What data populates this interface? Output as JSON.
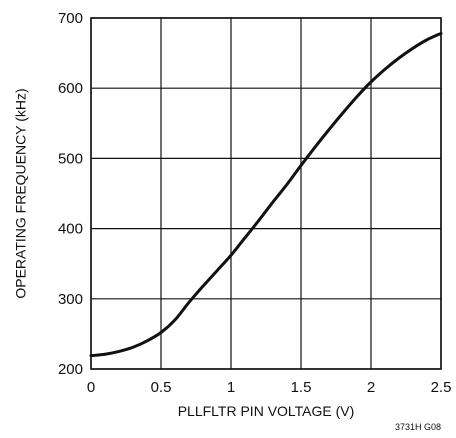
{
  "chart_data": {
    "type": "line",
    "title": "",
    "xlabel": "PLLFLTR PIN VOLTAGE (V)",
    "ylabel": "OPERATING FREQUENCY (kHz)",
    "xlim": [
      0,
      2.5
    ],
    "ylim": [
      200,
      700
    ],
    "x_ticks": [
      0,
      0.5,
      1,
      1.5,
      2,
      2.5
    ],
    "x_tick_labels": [
      "0",
      "0.5",
      "1",
      "1.5",
      "2",
      "2.5"
    ],
    "y_ticks": [
      200,
      300,
      400,
      500,
      600,
      700
    ],
    "y_tick_labels": [
      "200",
      "300",
      "400",
      "500",
      "600",
      "700"
    ],
    "grid": true,
    "series": [
      {
        "x": [
          0,
          0.1,
          0.2,
          0.3,
          0.4,
          0.5,
          0.6,
          0.7,
          0.8,
          0.9,
          1.0,
          1.1,
          1.2,
          1.3,
          1.4,
          1.5,
          1.6,
          1.7,
          1.8,
          1.9,
          2.0,
          2.1,
          2.2,
          2.3,
          2.4,
          2.5
        ],
        "y": [
          219,
          221,
          225,
          231,
          240,
          252,
          270,
          295,
          318,
          340,
          362,
          387,
          412,
          438,
          463,
          490,
          516,
          541,
          565,
          588,
          609,
          627,
          643,
          657,
          669,
          678
        ]
      }
    ],
    "figure_code": "3731H G08"
  }
}
